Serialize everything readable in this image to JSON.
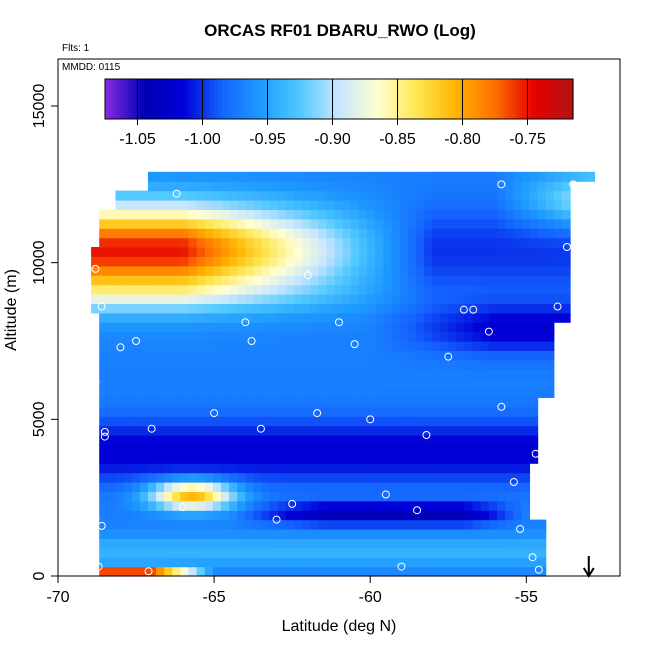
{
  "chart_data": {
    "type": "heatmap",
    "title": "ORCAS RF01 DBARU_RWO (Log)",
    "flights_label": "Flts: 1",
    "mmdd_label": "MMDD: 0115",
    "xlabel": "Latitude (deg N)",
    "ylabel": "Altitude (m)",
    "xlim": [
      -70,
      -52
    ],
    "ylim": [
      0,
      16500
    ],
    "x_ticks": [
      -70,
      -65,
      -60,
      -55
    ],
    "x_tick_labels": [
      "-70",
      "-65",
      "-60",
      "-55"
    ],
    "y_ticks": [
      0,
      5000,
      10000,
      15000
    ],
    "y_tick_labels": [
      "0",
      "5000",
      "10000",
      "15000"
    ],
    "colorbar": {
      "min": -1.075,
      "max": -0.715,
      "ticks": [
        -1.05,
        -1.0,
        -0.95,
        -0.9,
        -0.85,
        -0.8,
        -0.75
      ],
      "tick_labels": [
        "-1.05",
        "-1.00",
        "-0.95",
        "-0.90",
        "-0.85",
        "-0.80",
        "-0.75"
      ],
      "colors": [
        "#8a2be2",
        "#0000b4",
        "#0000d8",
        "#1464ff",
        "#1e9bff",
        "#50c8ff",
        "#c8e6ff",
        "#ffffd2",
        "#ffe650",
        "#ffb400",
        "#ff6e00",
        "#e60000",
        "#b41414"
      ]
    },
    "observations": [
      {
        "lat": -68.8,
        "alt": 6200
      },
      {
        "lat": -68.5,
        "alt": 4600
      },
      {
        "lat": -68.6,
        "alt": 1600
      },
      {
        "lat": -68.8,
        "alt": 1850
      },
      {
        "lat": -68.7,
        "alt": 300
      },
      {
        "lat": -68.5,
        "alt": 4450
      },
      {
        "lat": -68.6,
        "alt": 8600
      },
      {
        "lat": -68.8,
        "alt": 9800
      },
      {
        "lat": -68.9,
        "alt": 11600
      },
      {
        "lat": -68.0,
        "alt": 7300
      },
      {
        "lat": -67.5,
        "alt": 7500
      },
      {
        "lat": -67.0,
        "alt": 4700
      },
      {
        "lat": -66.2,
        "alt": 12200
      },
      {
        "lat": -66.0,
        "alt": 2200
      },
      {
        "lat": -65.0,
        "alt": 5200
      },
      {
        "lat": -64.0,
        "alt": 8100
      },
      {
        "lat": -63.8,
        "alt": 7500
      },
      {
        "lat": -63.5,
        "alt": 4700
      },
      {
        "lat": -63.0,
        "alt": 1800
      },
      {
        "lat": -62.5,
        "alt": 2300
      },
      {
        "lat": -62.0,
        "alt": 9600
      },
      {
        "lat": -61.7,
        "alt": 5200
      },
      {
        "lat": -61.0,
        "alt": 8100
      },
      {
        "lat": -60.5,
        "alt": 7400
      },
      {
        "lat": -60.0,
        "alt": 5000
      },
      {
        "lat": -59.5,
        "alt": 2600
      },
      {
        "lat": -59.0,
        "alt": 300
      },
      {
        "lat": -58.5,
        "alt": 2100
      },
      {
        "lat": -58.2,
        "alt": 4500
      },
      {
        "lat": -57.5,
        "alt": 7000
      },
      {
        "lat": -57.0,
        "alt": 8500
      },
      {
        "lat": -56.7,
        "alt": 8500
      },
      {
        "lat": -56.2,
        "alt": 7800
      },
      {
        "lat": -55.8,
        "alt": 5400
      },
      {
        "lat": -55.8,
        "alt": 12500
      },
      {
        "lat": -55.4,
        "alt": 3000
      },
      {
        "lat": -55.2,
        "alt": 1500
      },
      {
        "lat": -54.8,
        "alt": 600
      },
      {
        "lat": -54.7,
        "alt": 3900
      },
      {
        "lat": -54.6,
        "alt": 200
      },
      {
        "lat": -54.0,
        "alt": 8600
      },
      {
        "lat": -53.7,
        "alt": 10500
      },
      {
        "lat": -53.5,
        "alt": 12500
      },
      {
        "lat": -53.2,
        "alt": 10100
      },
      {
        "lat": -67.1,
        "alt": 150
      }
    ],
    "arrow_marker": {
      "lat": -53.0,
      "direction": "down"
    },
    "grid": false,
    "legend": "colorbar at top of plot"
  }
}
